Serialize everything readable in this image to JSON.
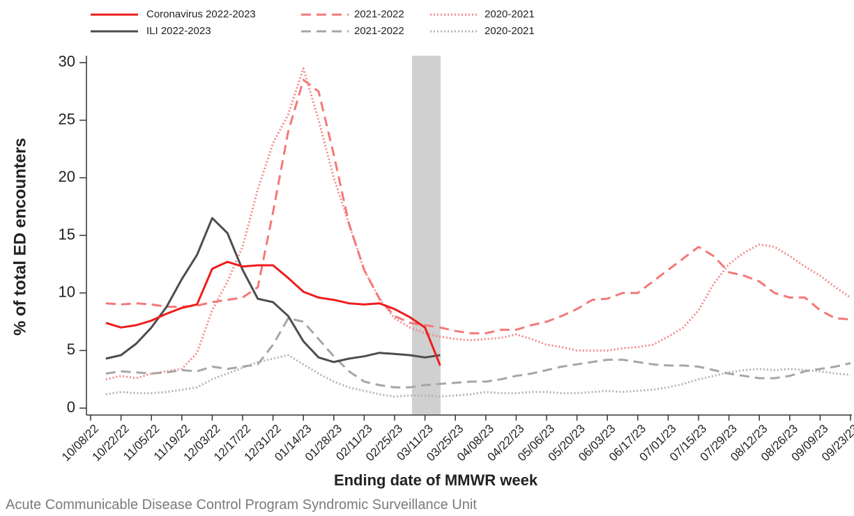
{
  "chart_data": {
    "type": "line",
    "y_label": "% of total ED encounters",
    "x_label": "Ending date of MMWR week",
    "source": "Acute Communicable Disease Control Program Syndromic Surveillance Unit",
    "categories": [
      "10/08/22",
      null,
      "10/22/22",
      null,
      "11/05/22",
      null,
      "11/19/22",
      null,
      "12/03/22",
      null,
      "12/17/22",
      null,
      "12/31/22",
      null,
      "01/14/23",
      null,
      "01/28/23",
      null,
      "02/11/23",
      null,
      "02/25/23",
      null,
      "03/11/23",
      null,
      "03/25/23",
      null,
      "04/08/23",
      null,
      "04/22/23",
      null,
      "05/06/23",
      null,
      "05/20/23",
      null,
      "06/03/23",
      null,
      "06/17/23",
      null,
      "07/01/23",
      null,
      "07/15/23",
      null,
      "07/29/23",
      null,
      "08/12/23",
      null,
      "08/26/23",
      null,
      "09/09/23",
      null,
      "09/23/23"
    ],
    "ylim": [
      -0.6,
      30.6
    ],
    "yticks": [
      0,
      5,
      10,
      15,
      20,
      25,
      30
    ],
    "series": [
      {
        "name": "Coronavirus 2022-2023",
        "color": "#ee1c1c",
        "dash": "solid",
        "values": [
          null,
          7.4,
          7.0,
          7.2,
          7.6,
          8.2,
          8.7,
          9.0,
          12.1,
          12.7,
          12.3,
          12.4,
          12.4,
          11.3,
          10.1,
          9.6,
          9.4,
          9.1,
          9.0,
          9.1,
          8.6,
          7.9,
          7.0,
          3.7,
          null,
          null,
          null,
          null,
          null,
          null,
          null,
          null,
          null,
          null,
          null,
          null,
          null,
          null,
          null,
          null,
          null,
          null,
          null,
          null,
          null,
          null,
          null,
          null,
          null,
          null,
          null
        ]
      },
      {
        "name": "ILI 2022-2023",
        "color": "#4d4d4d",
        "dash": "solid",
        "values": [
          null,
          4.3,
          4.6,
          5.6,
          7.0,
          8.8,
          11.2,
          13.3,
          16.5,
          15.2,
          12.0,
          9.5,
          9.2,
          8.0,
          5.8,
          4.4,
          4.0,
          4.3,
          4.5,
          4.8,
          4.7,
          4.6,
          4.4,
          4.6,
          null,
          null,
          null,
          null,
          null,
          null,
          null,
          null,
          null,
          null,
          null,
          null,
          null,
          null,
          null,
          null,
          null,
          null,
          null,
          null,
          null,
          null,
          null,
          null,
          null,
          null,
          null
        ]
      },
      {
        "name": "2021-2022",
        "color": "#f47878",
        "dash": "dashed",
        "values": [
          null,
          9.1,
          9.0,
          9.1,
          9.0,
          8.8,
          8.8,
          8.9,
          9.2,
          9.4,
          9.6,
          10.5,
          17,
          24,
          28.5,
          27.5,
          22,
          16,
          12,
          9.5,
          8.0,
          7.4,
          7.2,
          7.0,
          6.7,
          6.5,
          6.5,
          6.8,
          6.8,
          7.2,
          7.5,
          8.0,
          8.6,
          9.4,
          9.5,
          10.0,
          10.0,
          11.0,
          12.0,
          13.0,
          14.0,
          13.2,
          11.8,
          11.5,
          11.0,
          10.0,
          9.6,
          9.6,
          8.5,
          7.8,
          7.7
        ]
      },
      {
        "name": "2021-2022",
        "color": "#a6a6a6",
        "dash": "dashed",
        "values": [
          null,
          3.0,
          3.2,
          3.1,
          3.0,
          3.1,
          3.3,
          3.2,
          3.6,
          3.4,
          3.6,
          3.8,
          5.5,
          7.8,
          7.5,
          6.0,
          4.5,
          3.2,
          2.3,
          2.0,
          1.8,
          1.8,
          2.0,
          2.1,
          2.2,
          2.3,
          2.3,
          2.5,
          2.8,
          3.0,
          3.3,
          3.6,
          3.8,
          4.0,
          4.2,
          4.2,
          4.0,
          3.8,
          3.7,
          3.7,
          3.6,
          3.3,
          3.0,
          2.8,
          2.6,
          2.6,
          2.8,
          3.2,
          3.4,
          3.6,
          3.9
        ]
      },
      {
        "name": "2020-2021",
        "color": "#f48a8a",
        "dash": "dotted",
        "values": [
          null,
          2.5,
          2.8,
          2.6,
          3.0,
          3.2,
          3.4,
          4.8,
          8.5,
          11,
          14,
          19,
          23,
          25.5,
          29.5,
          25,
          20,
          16,
          12,
          9.5,
          7.8,
          7.0,
          6.5,
          6.2,
          6.0,
          5.9,
          6.0,
          6.1,
          6.4,
          6.0,
          5.5,
          5.3,
          5.0,
          5.0,
          5.0,
          5.2,
          5.3,
          5.5,
          6.2,
          7.0,
          8.5,
          10.8,
          12.5,
          13.5,
          14.2,
          14.0,
          13.2,
          12.3,
          11.5,
          10.5,
          9.6
        ]
      },
      {
        "name": "2020-2021",
        "color": "#b3b3b3",
        "dash": "dotted",
        "values": [
          null,
          1.2,
          1.4,
          1.3,
          1.3,
          1.4,
          1.6,
          1.8,
          2.5,
          3.0,
          3.5,
          4.0,
          4.3,
          4.6,
          3.8,
          3.0,
          2.3,
          1.8,
          1.5,
          1.2,
          1.0,
          1.1,
          1.1,
          1.0,
          1.1,
          1.2,
          1.4,
          1.3,
          1.3,
          1.4,
          1.4,
          1.3,
          1.3,
          1.4,
          1.5,
          1.4,
          1.5,
          1.6,
          1.8,
          2.1,
          2.5,
          2.8,
          3.1,
          3.3,
          3.4,
          3.3,
          3.4,
          3.3,
          3.2,
          3.0,
          2.9
        ]
      }
    ]
  }
}
